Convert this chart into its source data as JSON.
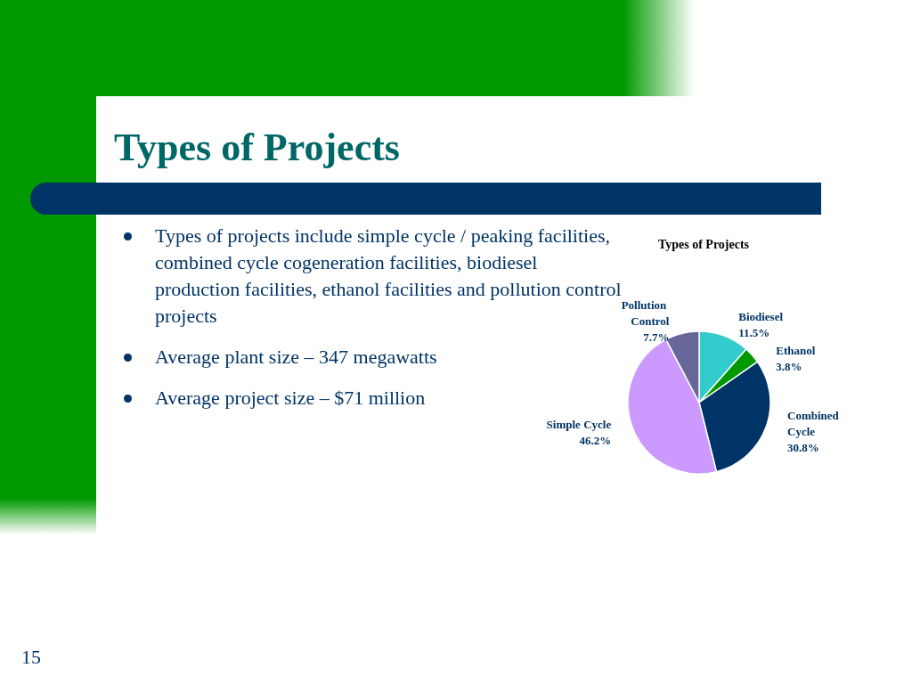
{
  "chart_data": {
    "type": "pie",
    "title": "Types of Projects",
    "categories": [
      "Biodiesel",
      "Ethanol",
      "Combined Cycle",
      "Simple Cycle",
      "Pollution Control"
    ],
    "values": [
      11.5,
      3.8,
      30.8,
      46.2,
      7.7
    ],
    "value_labels": [
      "11.5%",
      "3.8%",
      "30.8%",
      "46.2%",
      "7.7%"
    ],
    "colors": [
      "#33cccc",
      "#009900",
      "#003366",
      "#cc99ff",
      "#666699"
    ],
    "legend": false,
    "annotations": [
      "Types of Projects",
      "Types of projects include simple cycle / peaking facilities, combined cycle cogeneration facilities, biodiesel production facilities, ethanol facilities and pollution control projects",
      "Average plant size – 347 megawatts",
      "Average project size – $71 million",
      "15"
    ]
  }
}
